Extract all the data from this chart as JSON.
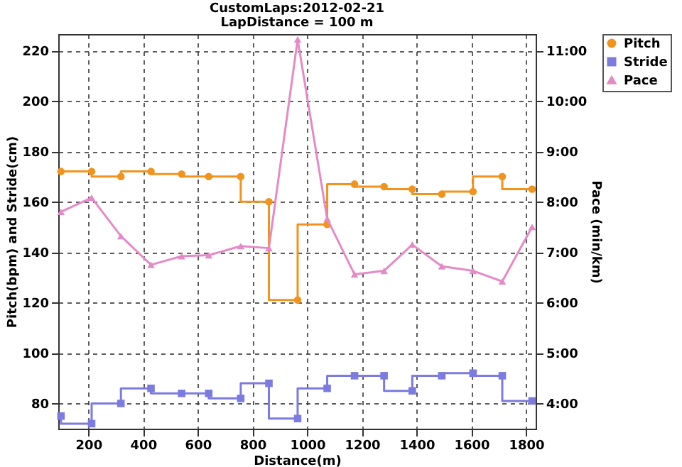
{
  "chart_data": {
    "type": "step",
    "title": "CustomLaps:2012-02-21",
    "subtitle": "LapDistance = 100 m",
    "xlabel": "Distance(m)",
    "ylabel": "Pitch(bpm) and Stride(cm)",
    "y2label": "Pace (min/km)",
    "x": [
      100,
      212,
      319,
      429,
      541,
      640,
      757,
      860,
      965,
      1073,
      1173,
      1281,
      1384,
      1492,
      1606,
      1713,
      1822
    ],
    "xlim": [
      90,
      1835
    ],
    "xticks": [
      200,
      400,
      600,
      800,
      1000,
      1200,
      1400,
      1600,
      1800
    ],
    "ylim": [
      70,
      226.5
    ],
    "yticks": [
      80,
      100,
      120,
      140,
      160,
      180,
      200,
      220
    ],
    "y2lim": [
      3.5,
      11.325
    ],
    "y2ticks": [
      {
        "value": 4,
        "label": "4:00"
      },
      {
        "value": 5,
        "label": "5:00"
      },
      {
        "value": 6,
        "label": "6:00"
      },
      {
        "value": 7,
        "label": "7:00"
      },
      {
        "value": 8,
        "label": "8:00"
      },
      {
        "value": 9,
        "label": "9:00"
      },
      {
        "value": 10,
        "label": "10:00"
      },
      {
        "value": 11,
        "label": "11:00"
      }
    ],
    "grid": true,
    "legend": "top right",
    "series": [
      {
        "name": "Pitch",
        "type": "step",
        "color": "#f0941e",
        "marker": "circle",
        "values": [
          172,
          172,
          170,
          172,
          171,
          170,
          170,
          160,
          121,
          151,
          167,
          166,
          165,
          163,
          164,
          170,
          165
        ]
      },
      {
        "name": "Stride",
        "type": "step",
        "color": "#7b7be0",
        "marker": "square",
        "values": [
          75,
          72,
          80,
          86,
          84,
          84,
          82,
          88,
          74,
          86,
          91,
          91,
          85,
          91,
          92,
          91,
          81
        ]
      },
      {
        "name": "Pace",
        "type": "line",
        "axis": "y2",
        "color": "#e48ac6",
        "marker": "triangle",
        "values": [
          7.8,
          8.08,
          7.32,
          6.75,
          6.92,
          6.94,
          7.12,
          7.08,
          11.22,
          7.66,
          6.56,
          6.63,
          7.15,
          6.72,
          6.63,
          6.42,
          7.5
        ]
      }
    ]
  }
}
